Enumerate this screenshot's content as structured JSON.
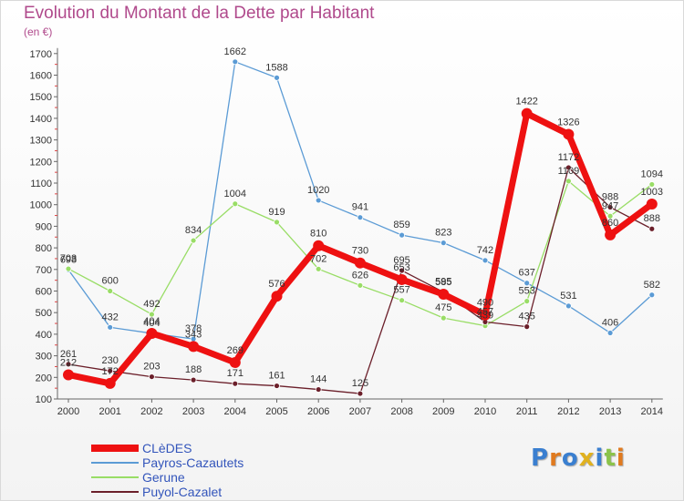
{
  "chart_data": {
    "type": "line",
    "title": "Evolution du Montant de la Dette par Habitant",
    "subtitle": "(en €)",
    "xlabel": "",
    "ylabel": "",
    "ylim": [
      100,
      1700
    ],
    "yticks": [
      100,
      200,
      300,
      400,
      500,
      600,
      700,
      800,
      900,
      1000,
      1100,
      1200,
      1300,
      1400,
      1500,
      1600,
      1700
    ],
    "categories": [
      "2000",
      "2001",
      "2002",
      "2003",
      "2004",
      "2005",
      "2006",
      "2007",
      "2008",
      "2009",
      "2010",
      "2011",
      "2012",
      "2013",
      "2014"
    ],
    "grid": false,
    "legend_position": "bottom-left",
    "series": [
      {
        "name": "Payros-Cazautets",
        "color": "#5b9bd5",
        "values": [
          698,
          432,
          404,
          378,
          1662,
          1588,
          1020,
          941,
          859,
          823,
          742,
          637,
          531,
          406,
          582
        ]
      },
      {
        "name": "Gerune",
        "color": "#99dd66",
        "values": [
          703,
          600,
          492,
          834,
          1004,
          919,
          702,
          626,
          557,
          475,
          439,
          553,
          1109,
          947,
          1094
        ]
      },
      {
        "name": "Puyol-Cazalet",
        "color": "#6b1f2a",
        "values": [
          261,
          230,
          203,
          188,
          171,
          161,
          144,
          125,
          695,
          595,
          457,
          435,
          1172,
          988,
          888
        ]
      },
      {
        "name": "CLèDES",
        "color": "#ee1111",
        "values": [
          212,
          172,
          404,
          343,
          269,
          576,
          810,
          730,
          653,
          585,
          490,
          1422,
          1326,
          860,
          1003
        ]
      }
    ]
  },
  "legend": [
    {
      "label": "CLèDES",
      "color": "#ee1111",
      "width": 8
    },
    {
      "label": "Payros-Cazautets",
      "color": "#5b9bd5",
      "width": 2
    },
    {
      "label": "Gerune",
      "color": "#99dd66",
      "width": 2
    },
    {
      "label": "Puyol-Cazalet",
      "color": "#6b1f2a",
      "width": 2
    }
  ],
  "brand": {
    "text": "Proxiti",
    "colors": [
      "#3a7fd0",
      "#e07a1f",
      "#3a7fd0",
      "#e0b11f",
      "#3a7fd0",
      "#8bc34a",
      "#e07a1f"
    ]
  }
}
